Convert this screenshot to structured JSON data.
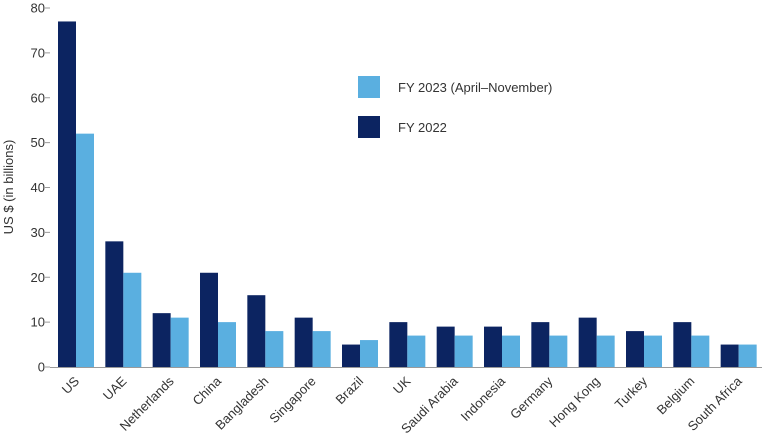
{
  "chart_data": {
    "type": "bar",
    "title": "",
    "xlabel": "",
    "ylabel": "US $ (in billions)",
    "ylim": [
      0,
      80
    ],
    "yticks": [
      0,
      10,
      20,
      30,
      40,
      50,
      60,
      70,
      80
    ],
    "grid": false,
    "legend_position": "top-right",
    "categories": [
      "US",
      "UAE",
      "Netherlands",
      "China",
      "Bangladesh",
      "Singapore",
      "Brazil",
      "UK",
      "Saudi Arabia",
      "Indonesia",
      "Germany",
      "Hong Kong",
      "Turkey",
      "Belgium",
      "South Africa"
    ],
    "series": [
      {
        "name": "FY 2022",
        "color": "#0c2461",
        "values": [
          77,
          28,
          12,
          21,
          16,
          11,
          5,
          10,
          9,
          9,
          10,
          11,
          8,
          10,
          5
        ]
      },
      {
        "name": "FY 2023 (April–November)",
        "color": "#5aafe0",
        "values": [
          52,
          21,
          11,
          10,
          8,
          8,
          6,
          7,
          7,
          7,
          7,
          7,
          7,
          7,
          5
        ]
      }
    ],
    "legend_order": [
      1,
      0
    ]
  }
}
